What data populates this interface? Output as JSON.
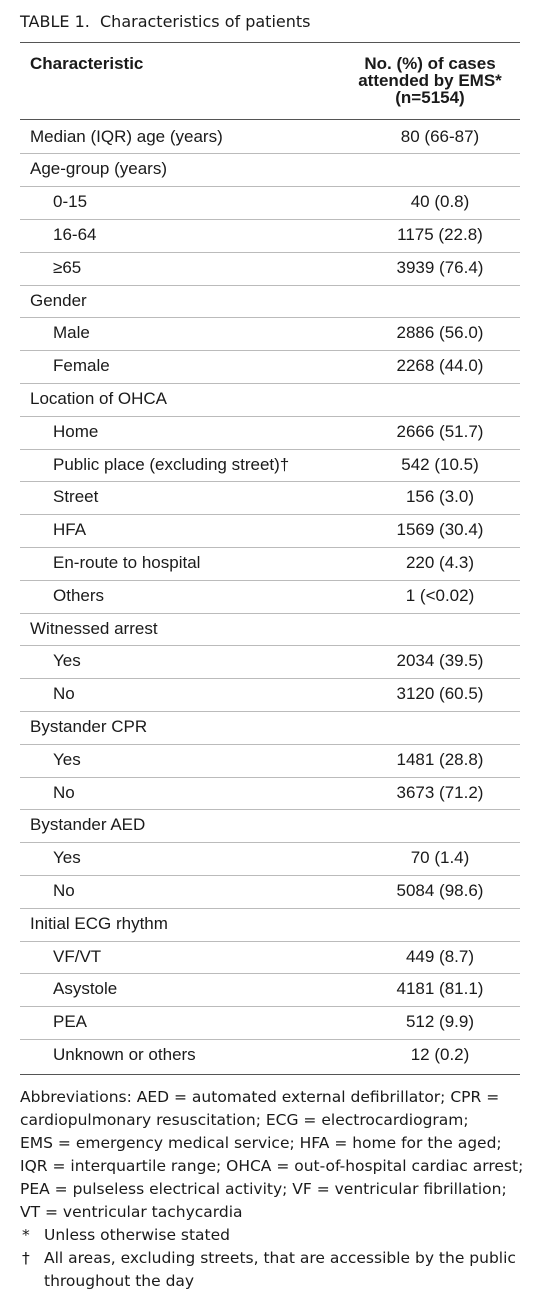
{
  "title": {
    "label": "TABLE 1.",
    "caption": "Characteristics of patients"
  },
  "table": {
    "header": {
      "characteristic": "Characteristic",
      "value_lines": [
        "No. (%) of cases",
        "attended by EMS*",
        "(n=5154)"
      ]
    },
    "groups": [
      {
        "label": "Median (IQR) age (years)",
        "value": "80 (66-87)"
      },
      {
        "label": "Age-group (years)",
        "items": [
          [
            "0-15",
            "40 (0.8)"
          ],
          [
            "16-64",
            "1175 (22.8)"
          ],
          [
            "≥65",
            "3939 (76.4)"
          ]
        ]
      },
      {
        "label": "Gender",
        "items": [
          [
            "Male",
            "2886 (56.0)"
          ],
          [
            "Female",
            "2268 (44.0)"
          ]
        ]
      },
      {
        "label": "Location of OHCA",
        "items": [
          [
            "Home",
            "2666 (51.7)"
          ],
          [
            "Public place (excluding street)†",
            "542 (10.5)"
          ],
          [
            "Street",
            "156 (3.0)"
          ],
          [
            "HFA",
            "1569 (30.4)"
          ],
          [
            "En-route to hospital",
            "220 (4.3)"
          ],
          [
            "Others",
            "1 (<0.02)"
          ]
        ]
      },
      {
        "label": "Witnessed arrest",
        "items": [
          [
            "Yes",
            "2034 (39.5)"
          ],
          [
            "No",
            "3120 (60.5)"
          ]
        ]
      },
      {
        "label": "Bystander CPR",
        "items": [
          [
            "Yes",
            "1481 (28.8)"
          ],
          [
            "No",
            "3673 (71.2)"
          ]
        ]
      },
      {
        "label": "Bystander AED",
        "items": [
          [
            "Yes",
            "70 (1.4)"
          ],
          [
            "No",
            "5084 (98.6)"
          ]
        ]
      },
      {
        "label": "Initial ECG rhythm",
        "items": [
          [
            "VF/VT",
            "449 (8.7)"
          ],
          [
            "Asystole",
            "4181 (81.1)"
          ],
          [
            "PEA",
            "512 (9.9)"
          ],
          [
            "Unknown or others",
            "12 (0.2)"
          ]
        ]
      }
    ]
  },
  "footnotes": {
    "abbreviation_lines": [
      "Abbreviations: AED = automated external defibrillator; CPR =",
      "cardiopulmonary resuscitation; ECG = electrocardiogram;",
      "EMS = emergency medical service; HFA = home for the aged;",
      "IQR = interquartile range; OHCA = out-of-hospital cardiac arrest;",
      "PEA = pulseless electrical activity; VF = ventricular fibrillation;",
      "VT = ventricular tachycardia"
    ],
    "notes": [
      {
        "symbol": "*",
        "text": "Unless otherwise stated"
      },
      {
        "symbol": "†",
        "text": "All areas, excluding streets, that are accessible by the public throughout the day"
      }
    ]
  }
}
